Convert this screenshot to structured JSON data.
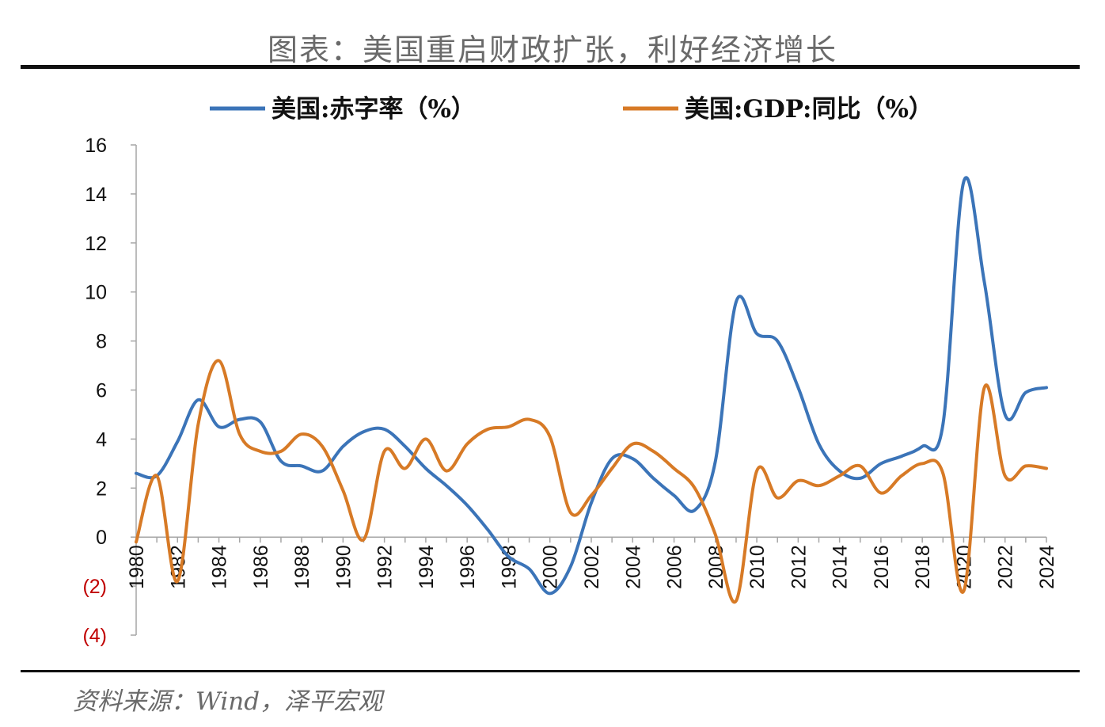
{
  "header": {
    "title": "图表：美国重启财政扩张，利好经济增长"
  },
  "footer": {
    "source": "资料来源：Wind，泽平宏观"
  },
  "chart_data": {
    "type": "line",
    "title": "图表：美国重启财政扩张，利好经济增长",
    "xlabel": "",
    "ylabel": "",
    "ylim": [
      -4,
      16
    ],
    "yticks": [
      16,
      14,
      12,
      10,
      8,
      6,
      4,
      2,
      0,
      -2,
      -4
    ],
    "ytick_labels": [
      "16",
      "14",
      "12",
      "10",
      "8",
      "6",
      "4",
      "2",
      "0",
      "(2)",
      "(4)"
    ],
    "negative_tick_color": "#c00000",
    "xtick_labels": [
      "1980",
      "1982",
      "1984",
      "1986",
      "1988",
      "1990",
      "1992",
      "1994",
      "1996",
      "1998",
      "2000",
      "2002",
      "2004",
      "2006",
      "2008",
      "2010",
      "2012",
      "2014",
      "2016",
      "2018",
      "2020",
      "2022",
      "2024"
    ],
    "x": [
      1980,
      1981,
      1982,
      1983,
      1984,
      1985,
      1986,
      1987,
      1988,
      1989,
      1990,
      1991,
      1992,
      1993,
      1994,
      1995,
      1996,
      1997,
      1998,
      1999,
      2000,
      2001,
      2002,
      2003,
      2004,
      2005,
      2006,
      2007,
      2008,
      2009,
      2010,
      2011,
      2012,
      2013,
      2014,
      2015,
      2016,
      2017,
      2018,
      2019,
      2020,
      2021,
      2022,
      2023,
      2024
    ],
    "series": [
      {
        "name": "美国:赤字率（%）",
        "color": "#3b74b8",
        "values": [
          2.6,
          2.5,
          3.9,
          5.6,
          4.5,
          4.8,
          4.7,
          3.1,
          2.9,
          2.7,
          3.7,
          4.3,
          4.4,
          3.7,
          2.8,
          2.1,
          1.3,
          0.3,
          -0.8,
          -1.3,
          -2.3,
          -1.2,
          1.4,
          3.2,
          3.2,
          2.4,
          1.7,
          1.1,
          3.1,
          9.6,
          8.3,
          8.0,
          6.1,
          3.8,
          2.7,
          2.4,
          3.0,
          3.3,
          3.7,
          4.6,
          14.5,
          10.4,
          5.0,
          5.9,
          6.1
        ]
      },
      {
        "name": "美国:GDP:同比（%）",
        "color": "#d77a26",
        "values": [
          -0.2,
          2.5,
          -1.8,
          4.6,
          7.2,
          4.2,
          3.5,
          3.5,
          4.2,
          3.7,
          1.9,
          -0.1,
          3.5,
          2.8,
          4.0,
          2.7,
          3.8,
          4.4,
          4.5,
          4.8,
          4.1,
          1.0,
          1.7,
          2.8,
          3.8,
          3.5,
          2.8,
          2.0,
          0.1,
          -2.6,
          2.7,
          1.6,
          2.3,
          2.1,
          2.5,
          2.9,
          1.8,
          2.5,
          3.0,
          2.6,
          -2.2,
          6.1,
          2.5,
          2.9,
          2.8
        ]
      }
    ],
    "legend_position": "top",
    "grid": false
  }
}
